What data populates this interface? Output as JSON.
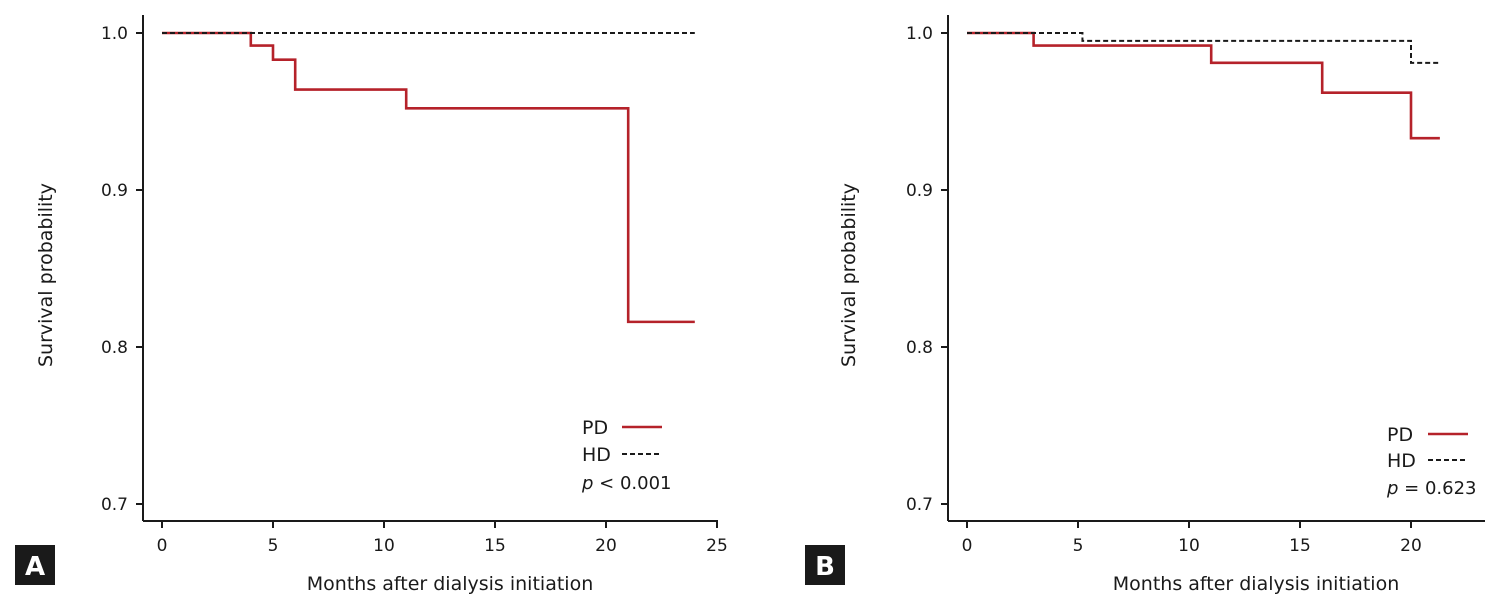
{
  "chart_data": [
    {
      "panel": "A",
      "type": "line",
      "xlabel": "Months after dialysis initiation",
      "ylabel": "Survival probability",
      "xlim": [
        0,
        25
      ],
      "ylim": [
        0.7,
        1.0
      ],
      "xticks": [
        "0",
        "5",
        "10",
        "15",
        "20",
        "25"
      ],
      "yticks": [
        "0.7",
        "0.8",
        "0.9",
        "1.0"
      ],
      "series": [
        {
          "name": "PD",
          "color": "#b5222a",
          "style": "solid",
          "step_points": [
            [
              0,
              1.0
            ],
            [
              4,
              0.992
            ],
            [
              5,
              0.983
            ],
            [
              6,
              0.964
            ],
            [
              11,
              0.952
            ],
            [
              21,
              0.816
            ],
            [
              24,
              0.816
            ]
          ]
        },
        {
          "name": "HD",
          "color": "#1a1a1a",
          "style": "dashed",
          "step_points": [
            [
              0,
              1.0
            ],
            [
              24,
              1.0
            ]
          ]
        }
      ],
      "legend_position": "bottom-right",
      "annotation": {
        "prefix": "p",
        "text": " < 0.001"
      }
    },
    {
      "panel": "B",
      "type": "line",
      "xlabel": "Months after dialysis initiation",
      "ylabel": "Survival probability",
      "xlim": [
        0,
        23.5
      ],
      "ylim": [
        0.7,
        1.0
      ],
      "xticks": [
        "0",
        "5",
        "10",
        "15",
        "20"
      ],
      "yticks": [
        "0.7",
        "0.8",
        "0.9",
        "1.0"
      ],
      "series": [
        {
          "name": "PD",
          "color": "#b5222a",
          "style": "solid",
          "step_points": [
            [
              0,
              1.0
            ],
            [
              3,
              0.992
            ],
            [
              11,
              0.981
            ],
            [
              16,
              0.962
            ],
            [
              20,
              0.933
            ],
            [
              21.3,
              0.933
            ]
          ]
        },
        {
          "name": "HD",
          "color": "#1a1a1a",
          "style": "dashed",
          "step_points": [
            [
              0,
              1.0
            ],
            [
              5.2,
              0.995
            ],
            [
              20,
              0.981
            ],
            [
              21.3,
              0.981
            ]
          ]
        }
      ],
      "legend_position": "bottom-right",
      "annotation": {
        "prefix": "p",
        "text": " = 0.623"
      }
    }
  ]
}
